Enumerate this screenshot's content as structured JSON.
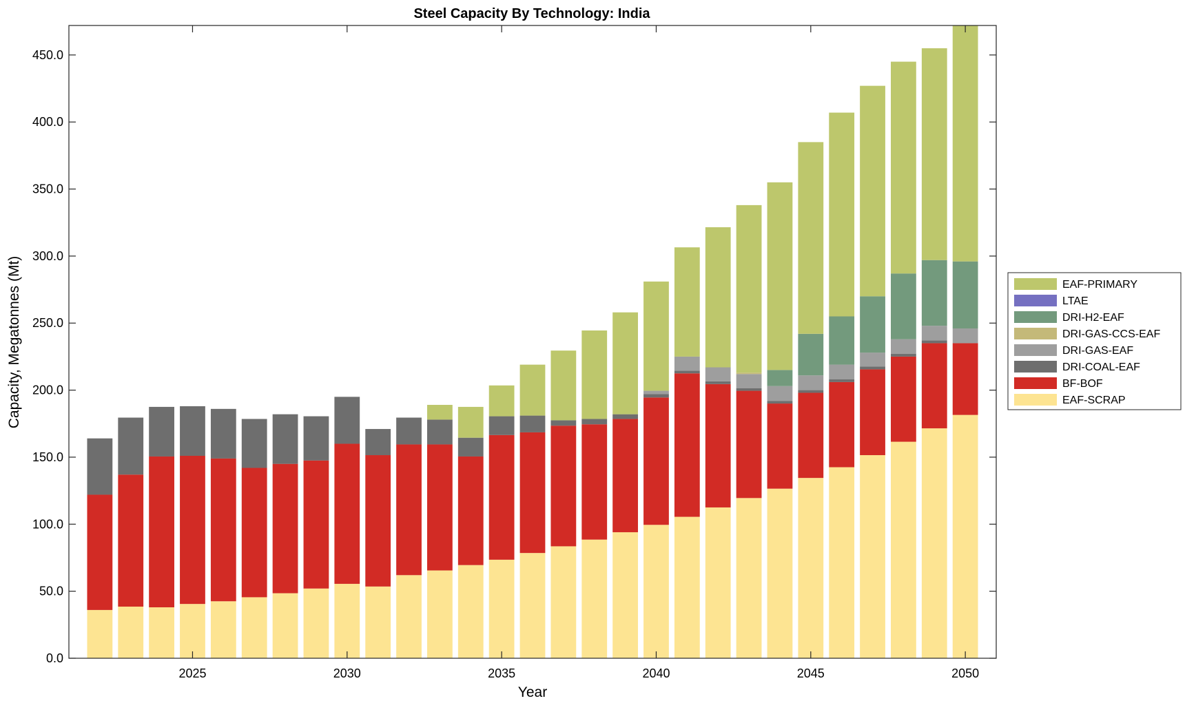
{
  "chart_data": {
    "type": "bar",
    "stacked": true,
    "title": "Steel Capacity By Technology: India",
    "xlabel": "Year",
    "ylabel": "Capacity, Megatonnes (Mt)",
    "ylim": [
      0,
      472
    ],
    "xlim": [
      2021,
      2051
    ],
    "yticks": [
      0,
      50,
      100,
      150,
      200,
      250,
      300,
      350,
      400,
      450
    ],
    "ytick_labels": [
      "0.0",
      "50.0",
      "100.0",
      "150.0",
      "200.0",
      "250.0",
      "300.0",
      "350.0",
      "400.0",
      "450.0"
    ],
    "xticks": [
      2025,
      2030,
      2035,
      2040,
      2045,
      2050
    ],
    "xtick_labels": [
      "2025",
      "2030",
      "2035",
      "2040",
      "2045",
      "2050"
    ],
    "grid": false,
    "legend_position": "right",
    "x": [
      2022,
      2023,
      2024,
      2025,
      2026,
      2027,
      2028,
      2029,
      2030,
      2031,
      2032,
      2033,
      2034,
      2035,
      2036,
      2037,
      2038,
      2039,
      2040,
      2041,
      2042,
      2043,
      2044,
      2045,
      2046,
      2047,
      2048,
      2049,
      2050
    ],
    "series": [
      {
        "name": "EAF-SCRAP",
        "color": "#fde492",
        "values": [
          36,
          38.5,
          38,
          40.5,
          42.5,
          45.5,
          48.5,
          52,
          55.5,
          53.5,
          62,
          65.5,
          69.5,
          73.5,
          78.5,
          83.5,
          88.5,
          94,
          99.5,
          105.5,
          112.5,
          119.5,
          126.5,
          134.5,
          142.5,
          151.5,
          161.5,
          171.5,
          181.5
        ]
      },
      {
        "name": "BF-BOF",
        "color": "#d22b25",
        "values": [
          86,
          98.5,
          112.5,
          110.5,
          106.5,
          96.5,
          96.5,
          95.5,
          104.5,
          98,
          97.5,
          94,
          81,
          93,
          90,
          90,
          86,
          84.5,
          95,
          107,
          92,
          80,
          63.5,
          63.5,
          63.5,
          64,
          63.5,
          63.5,
          53.5
        ]
      },
      {
        "name": "DRI-COAL-EAF",
        "color": "#6e6e6e",
        "values": [
          42,
          42.5,
          37,
          37,
          37,
          36.5,
          37,
          33,
          35,
          19.5,
          20,
          18.5,
          14,
          14,
          12.5,
          4,
          4,
          3.5,
          2.5,
          2,
          2,
          2,
          2,
          2,
          2,
          2,
          2,
          2,
          0
        ]
      },
      {
        "name": "DRI-GAS-EAF",
        "color": "#9e9e9e",
        "values": [
          0,
          0,
          0,
          0,
          0,
          0,
          0,
          0,
          0,
          0,
          0,
          0,
          0,
          0,
          0,
          0,
          0,
          0,
          2.5,
          10.5,
          10.5,
          10.5,
          11,
          11,
          11,
          10.5,
          11,
          11,
          11
        ]
      },
      {
        "name": "DRI-GAS-CCS-EAF",
        "color": "#c4b979",
        "values": [
          0,
          0,
          0,
          0,
          0,
          0,
          0,
          0,
          0,
          0,
          0,
          0,
          0,
          0,
          0,
          0,
          0,
          0,
          0,
          0,
          0,
          1,
          0,
          0,
          0,
          0,
          0,
          0,
          0
        ]
      },
      {
        "name": "DRI-H2-EAF",
        "color": "#739a7d",
        "values": [
          0,
          0,
          0,
          0,
          0,
          0,
          0,
          0,
          0,
          0,
          0,
          0,
          0,
          0,
          0,
          0,
          0,
          0,
          0,
          0,
          0,
          0,
          12,
          31,
          36,
          42,
          49,
          49,
          50
        ]
      },
      {
        "name": "LTAE",
        "color": "#7570c1",
        "values": [
          0,
          0,
          0,
          0,
          0,
          0,
          0,
          0,
          0,
          0,
          0,
          0,
          0,
          0,
          0,
          0,
          0,
          0,
          0,
          0,
          0,
          0,
          0,
          0,
          0,
          0,
          0,
          0,
          0
        ]
      },
      {
        "name": "EAF-PRIMARY",
        "color": "#bdc76c",
        "values": [
          0,
          0,
          0,
          0,
          0,
          0,
          0,
          0,
          0,
          0,
          0,
          11,
          23,
          23,
          38,
          52,
          66,
          76,
          81.5,
          81.5,
          104.5,
          125,
          140,
          143,
          152,
          157,
          158,
          158,
          176
        ]
      }
    ],
    "legend_order": [
      "EAF-PRIMARY",
      "LTAE",
      "DRI-H2-EAF",
      "DRI-GAS-CCS-EAF",
      "DRI-GAS-EAF",
      "DRI-COAL-EAF",
      "BF-BOF",
      "EAF-SCRAP"
    ]
  }
}
